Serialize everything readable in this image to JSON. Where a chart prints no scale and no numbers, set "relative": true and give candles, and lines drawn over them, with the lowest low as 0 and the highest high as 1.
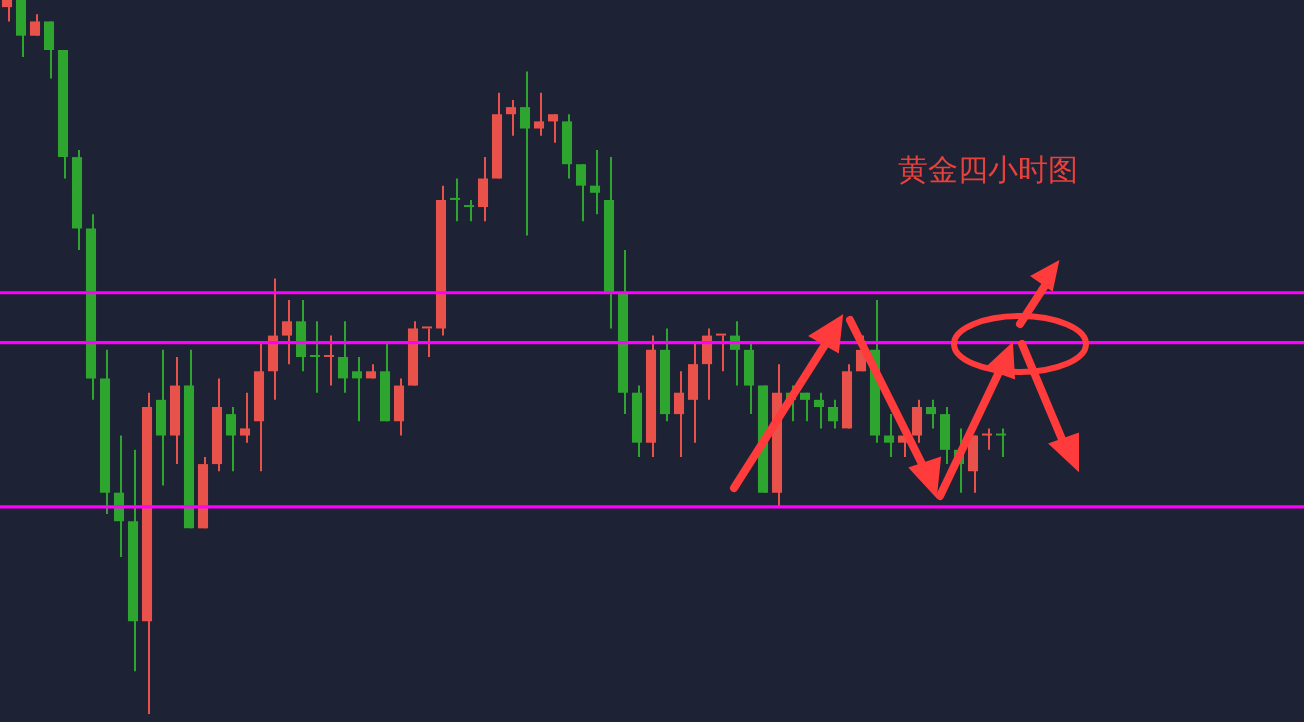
{
  "chart_data": {
    "type": "candlestick",
    "title": "黄金四小时图",
    "relative": true,
    "categories": [
      null,
      null,
      null,
      null,
      null,
      null,
      null,
      null,
      null,
      null,
      null,
      null,
      null,
      null,
      null,
      null,
      null,
      null,
      null,
      null,
      null,
      null,
      null,
      null,
      null,
      null,
      null,
      null,
      null,
      null,
      null,
      null,
      null,
      null,
      null,
      null,
      null,
      null,
      null,
      null,
      null,
      null,
      null,
      null,
      null,
      null,
      null,
      null,
      null,
      null,
      null,
      null,
      null,
      null,
      null,
      null,
      null,
      null,
      null,
      null,
      null,
      null,
      null,
      null,
      null,
      null,
      null,
      null,
      null,
      null,
      null,
      null
    ],
    "ohlc": [
      [
        0.99,
        1.0,
        0.97,
        1.0
      ],
      [
        1.0,
        1.0,
        0.92,
        0.95
      ],
      [
        0.95,
        0.98,
        0.95,
        0.97
      ],
      [
        0.97,
        0.97,
        0.89,
        0.93
      ],
      [
        0.93,
        0.93,
        0.75,
        0.78
      ],
      [
        0.78,
        0.79,
        0.65,
        0.68
      ],
      [
        0.68,
        0.7,
        0.44,
        0.47
      ],
      [
        0.47,
        0.51,
        0.28,
        0.31
      ],
      [
        0.31,
        0.39,
        0.22,
        0.27
      ],
      [
        0.27,
        0.37,
        0.06,
        0.13
      ],
      [
        0.13,
        0.45,
        0,
        0.43
      ],
      [
        0.44,
        0.51,
        0.32,
        0.39
      ],
      [
        0.39,
        0.5,
        0.35,
        0.46
      ],
      [
        0.46,
        0.51,
        0.26,
        0.26
      ],
      [
        0.26,
        0.36,
        0.26,
        0.35
      ],
      [
        0.35,
        0.47,
        0.34,
        0.43
      ],
      [
        0.42,
        0.43,
        0.34,
        0.39
      ],
      [
        0.39,
        0.45,
        0.38,
        0.4
      ],
      [
        0.41,
        0.52,
        0.34,
        0.48
      ],
      [
        0.48,
        0.61,
        0.44,
        0.53
      ],
      [
        0.53,
        0.58,
        0.49,
        0.55
      ],
      [
        0.55,
        0.58,
        0.48,
        0.5
      ],
      [
        0.5,
        0.55,
        0.45,
        0.5
      ],
      [
        0.5,
        0.53,
        0.46,
        0.5
      ],
      [
        0.5,
        0.55,
        0.45,
        0.47
      ],
      [
        0.48,
        0.5,
        0.41,
        0.47
      ],
      [
        0.47,
        0.49,
        0.47,
        0.48
      ],
      [
        0.48,
        0.52,
        0.41,
        0.41
      ],
      [
        0.41,
        0.47,
        0.39,
        0.46
      ],
      [
        0.46,
        0.55,
        0.46,
        0.54
      ],
      [
        0.54,
        0.54,
        0.5,
        0.54
      ],
      [
        0.54,
        0.74,
        0.53,
        0.72
      ],
      [
        0.72,
        0.75,
        0.69,
        0.72
      ],
      [
        0.71,
        0.72,
        0.69,
        0.71
      ],
      [
        0.71,
        0.78,
        0.69,
        0.75
      ],
      [
        0.75,
        0.87,
        0.75,
        0.84
      ],
      [
        0.84,
        0.86,
        0.81,
        0.85
      ],
      [
        0.85,
        0.9,
        0.67,
        0.82
      ],
      [
        0.82,
        0.87,
        0.81,
        0.83
      ],
      [
        0.83,
        0.84,
        0.8,
        0.84
      ],
      [
        0.83,
        0.84,
        0.75,
        0.77
      ],
      [
        0.77,
        0.77,
        0.69,
        0.74
      ],
      [
        0.74,
        0.79,
        0.7,
        0.73
      ],
      [
        0.72,
        0.78,
        0.54,
        0.59
      ],
      [
        0.59,
        0.65,
        0.42,
        0.45
      ],
      [
        0.45,
        0.46,
        0.36,
        0.38
      ],
      [
        0.38,
        0.53,
        0.36,
        0.51
      ],
      [
        0.51,
        0.54,
        0.41,
        0.42
      ],
      [
        0.42,
        0.48,
        0.36,
        0.45
      ],
      [
        0.44,
        0.52,
        0.38,
        0.49
      ],
      [
        0.49,
        0.54,
        0.44,
        0.53
      ],
      [
        0.53,
        0.53,
        0.48,
        0.53
      ],
      [
        0.53,
        0.55,
        0.46,
        0.51
      ],
      [
        0.51,
        0.52,
        0.42,
        0.46
      ],
      [
        0.46,
        0.46,
        0.31,
        0.31
      ],
      [
        0.31,
        0.49,
        0.29,
        0.45
      ],
      [
        0.45,
        0.46,
        0.41,
        0.44
      ],
      [
        0.45,
        0.45,
        0.41,
        0.44
      ],
      [
        0.44,
        0.45,
        0.4,
        0.43
      ],
      [
        0.43,
        0.44,
        0.4,
        0.41
      ],
      [
        0.4,
        0.49,
        0.4,
        0.48
      ],
      [
        0.48,
        0.53,
        0.48,
        0.51
      ],
      [
        0.51,
        0.58,
        0.38,
        0.39
      ],
      [
        0.39,
        0.42,
        0.36,
        0.38
      ],
      [
        0.38,
        0.4,
        0.36,
        0.39
      ],
      [
        0.39,
        0.44,
        0.38,
        0.43
      ],
      [
        0.43,
        0.44,
        0.4,
        0.42
      ],
      [
        0.42,
        0.43,
        0.35,
        0.37
      ],
      [
        0.37,
        0.4,
        0.31,
        0.35
      ],
      [
        0.34,
        0.39,
        0.31,
        0.39
      ],
      [
        0.39,
        0.4,
        0.37,
        0.39
      ],
      [
        0.39,
        0.4,
        0.36,
        0.39
      ]
    ],
    "colors": [
      "#e8524a",
      "#2ea52e",
      "#e8524a",
      "#2ea52e",
      "#2ea52e",
      "#2ea52e",
      "#2ea52e",
      "#2ea52e",
      "#2ea52e",
      "#2ea52e",
      "#e8524a",
      "#2ea52e",
      "#e8524a",
      "#2ea52e",
      "#e8524a",
      "#e8524a",
      "#2ea52e",
      "#e8524a",
      "#e8524a",
      "#e8524a",
      "#e8524a",
      "#2ea52e",
      "#2ea52e",
      "#e8524a",
      "#2ea52e",
      "#2ea52e",
      "#e8524a",
      "#2ea52e",
      "#e8524a",
      "#e8524a",
      "#e8524a",
      "#e8524a",
      "#2ea52e",
      "#2ea52e",
      "#e8524a",
      "#e8524a",
      "#e8524a",
      "#2ea52e",
      "#e8524a",
      "#e8524a",
      "#2ea52e",
      "#2ea52e",
      "#2ea52e",
      "#2ea52e",
      "#2ea52e",
      "#2ea52e",
      "#e8524a",
      "#2ea52e",
      "#e8524a",
      "#e8524a",
      "#e8524a",
      "#e8524a",
      "#2ea52e",
      "#2ea52e",
      "#2ea52e",
      "#e8524a",
      "#2ea52e",
      "#2ea52e",
      "#2ea52e",
      "#2ea52e",
      "#e8524a",
      "#e8524a",
      "#2ea52e",
      "#2ea52e",
      "#e8524a",
      "#e8524a",
      "#2ea52e",
      "#2ea52e",
      "#2ea52e",
      "#e8524a",
      "#e8524a",
      "#2ea52e"
    ],
    "ref_lines": [
      {
        "axis": "y",
        "value": 0.59,
        "color": "#ff00ff"
      },
      {
        "axis": "y",
        "value": 0.52,
        "color": "#ff00ff"
      },
      {
        "axis": "y",
        "value": 0.29,
        "color": "#ff00ff"
      }
    ]
  }
}
